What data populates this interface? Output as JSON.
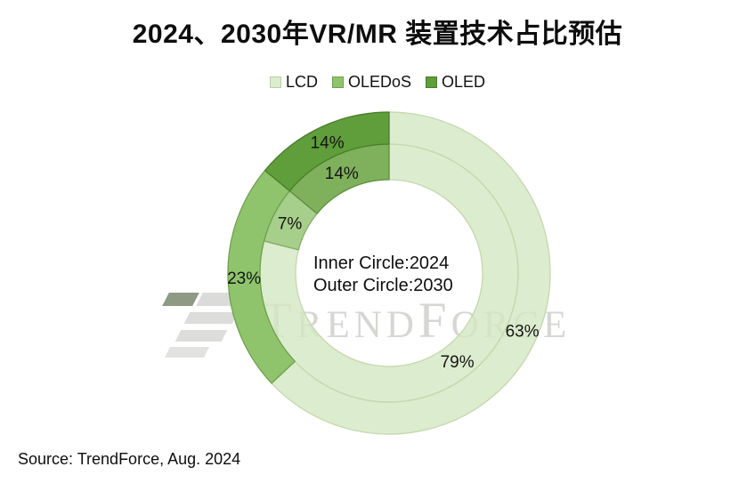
{
  "title": "2024、2030年VR/MR 装置技术占比预估",
  "center_label": {
    "line1": "Inner Circle:2024",
    "line2": "Outer Circle:2030"
  },
  "source": "Source: TrendForce, Aug. 2024",
  "watermark": {
    "name": "TrendForce",
    "segments": [
      "T",
      "REND",
      "F",
      "ORCE"
    ]
  },
  "chart_data": {
    "type": "pie",
    "subtype": "double-donut",
    "title": "2024、2030年VR/MR 装置技术占比预估",
    "categories": [
      "LCD",
      "OLEDoS",
      "OLED"
    ],
    "series": [
      {
        "name": "2024",
        "ring": "inner",
        "ring_note": "Inner Circle:2024",
        "values": [
          79,
          7,
          14
        ],
        "fills": [
          "#dcecce",
          "#a6cf8b",
          "#7fb15c"
        ],
        "borders": [
          "#c3d8ad",
          "#83ad63",
          "#5c8f3b"
        ]
      },
      {
        "name": "2030",
        "ring": "outer",
        "ring_note": "Outer Circle:2030",
        "values": [
          63,
          23,
          14
        ],
        "fills": [
          "#dcecce",
          "#8fc46d",
          "#5f9e3a"
        ],
        "borders": [
          "#c3d8ad",
          "#6fa14e",
          "#4a7d2b"
        ]
      }
    ],
    "unit": "%",
    "start_angle_deg": 0,
    "direction": "clockwise",
    "legend_position": "top",
    "legend_colors": [
      "#dcecce",
      "#8fc46d",
      "#5f9e3a"
    ],
    "legend_borders": [
      "#b9cfa4",
      "#6fa14e",
      "#4a7d2b"
    ],
    "labels_shown": true,
    "source": "Source: TrendForce, Aug. 2024"
  }
}
